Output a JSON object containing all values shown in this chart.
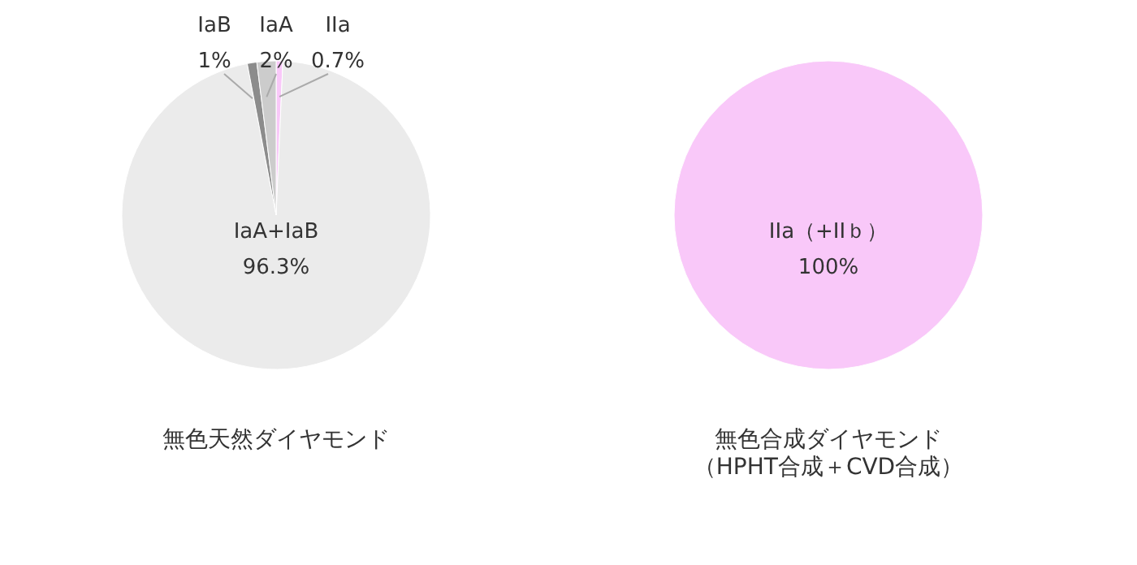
{
  "chart_data": [
    {
      "type": "pie",
      "title": "無色天然ダイヤモンド",
      "categories": [
        "IIa",
        "IaA+IaB",
        "IaB",
        "IaA"
      ],
      "values": [
        0.7,
        96.3,
        1,
        2
      ],
      "colors": [
        "#f9c8f9",
        "#ebebeb",
        "#8c8c8c",
        "#cccccc"
      ],
      "value_labels": [
        "0.7%",
        "96.3%",
        "1%",
        "2%"
      ]
    },
    {
      "type": "pie",
      "title": "無色合成ダイヤモンド",
      "subtitle": "（HPHT合成＋CVD合成）",
      "categories": [
        "IIa（+IIｂ）"
      ],
      "values": [
        100
      ],
      "colors": [
        "#f9c8f9"
      ],
      "value_labels": [
        "100%"
      ]
    }
  ]
}
